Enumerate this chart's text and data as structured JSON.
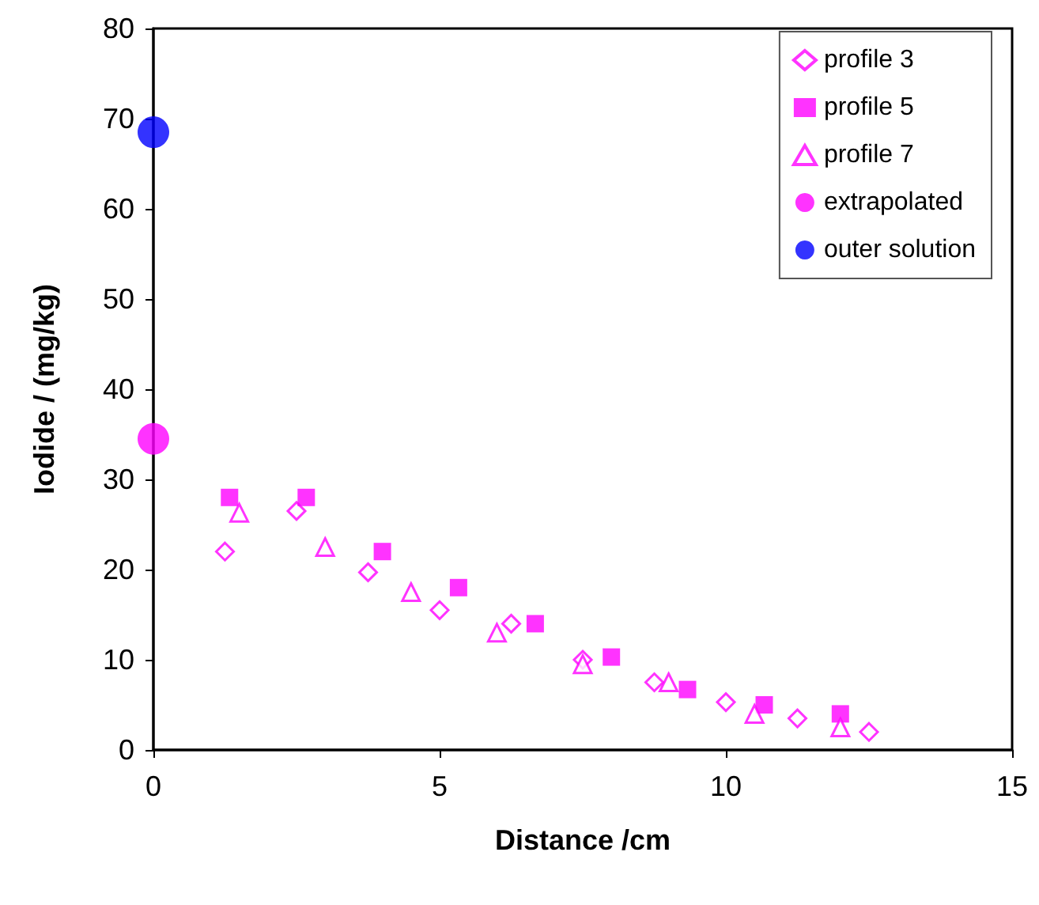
{
  "chart_data": {
    "type": "scatter",
    "xlabel": "Distance /cm",
    "ylabel": "Iodide / (mg/kg)",
    "xlim": [
      0,
      15
    ],
    "xticks": [
      0,
      5,
      10,
      15
    ],
    "ylim": [
      0,
      80
    ],
    "yticks": [
      0,
      10,
      20,
      30,
      40,
      50,
      60,
      70,
      80
    ],
    "grid": false,
    "legend": "top right",
    "series": [
      {
        "name": "profile 3",
        "color": "#ff00ff",
        "marker": "diamond",
        "x": [
          1.25,
          2.5,
          3.75,
          5,
          6.25,
          7.5,
          8.75,
          10,
          11.25,
          12.5
        ],
        "values": [
          22,
          26.5,
          19.7,
          15.5,
          14,
          10,
          7.5,
          5.3,
          3.5,
          2
        ]
      },
      {
        "name": "profile 5",
        "color": "#ff00ff",
        "marker": "square",
        "x": [
          1.33,
          2.67,
          4,
          5.33,
          6.67,
          8,
          9.33,
          10.67,
          12
        ],
        "values": [
          28,
          28,
          22,
          18,
          14,
          10.3,
          6.7,
          5,
          4
        ]
      },
      {
        "name": "profile 7",
        "color": "#ff00ff",
        "marker": "triangle",
        "x": [
          1.5,
          3,
          4.5,
          6,
          7.5,
          9,
          10.5,
          12
        ],
        "values": [
          26.3,
          22.5,
          17.5,
          13,
          9.5,
          7.5,
          4,
          2.5
        ]
      },
      {
        "name": "extrapolated",
        "color": "#ff00ff",
        "marker": "circle",
        "x": [
          0
        ],
        "values": [
          34.5
        ]
      },
      {
        "name": "outer solution",
        "color": "#0000ff",
        "marker": "circle",
        "x": [
          0
        ],
        "values": [
          68.5
        ]
      }
    ]
  }
}
